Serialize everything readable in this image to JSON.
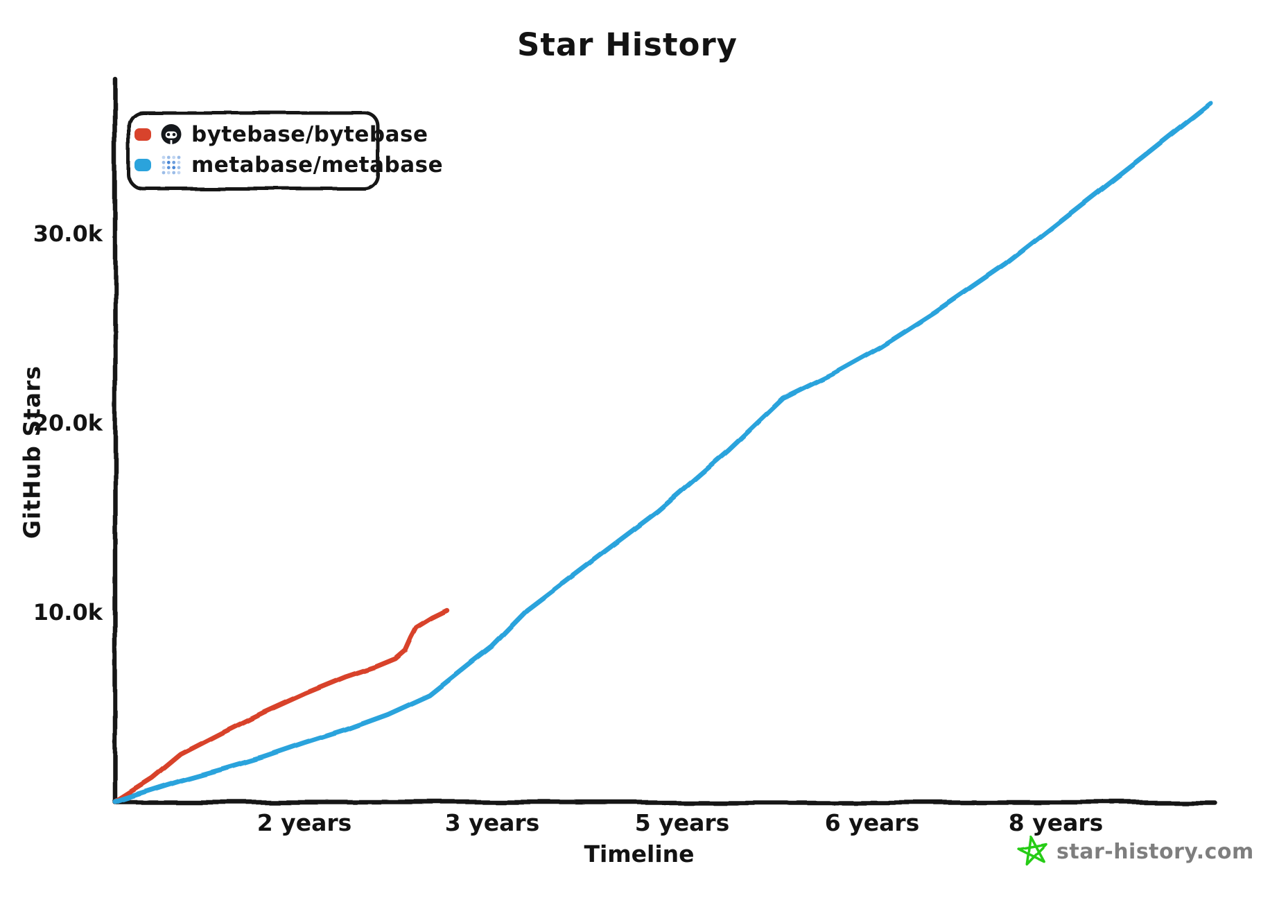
{
  "title": "Star History",
  "watermark": {
    "label": "star-history.com",
    "icon": "doodle-star-icon",
    "icon_color": "#26cc14",
    "text_color": "#7e7e7e"
  },
  "legend": {
    "position": "top-left",
    "items": [
      {
        "label": "bytebase/bytebase",
        "color": "#d8432c",
        "icon": "github-invertocat-avatar"
      },
      {
        "label": "metabase/metabase",
        "color": "#2ba3dc",
        "icon": "metabase-dot-grid-avatar"
      }
    ]
  },
  "chart_data": {
    "type": "line",
    "title": "Star History",
    "xlabel": "Timeline",
    "ylabel": "GitHub Stars",
    "grid": false,
    "legend_position": "top-left",
    "axis_color": "#131313",
    "ylim_k": [
      0,
      38
    ],
    "y_ticks": [
      {
        "label": "10.0k",
        "value_k": 10
      },
      {
        "label": "20.0k",
        "value_k": 20
      },
      {
        "label": "30.0k",
        "value_k": 30
      }
    ],
    "x_ticks": [
      {
        "label": "2 years",
        "t": 0.173
      },
      {
        "label": "3 years",
        "t": 0.344
      },
      {
        "label": "5 years",
        "t": 0.518
      },
      {
        "label": "6 years",
        "t": 0.691
      },
      {
        "label": "8 years",
        "t": 0.859
      }
    ],
    "series": [
      {
        "name": "bytebase/bytebase",
        "color": "#d8432c",
        "final_stars_k": 10.1,
        "points": [
          [
            0,
            0
          ],
          [
            0.034,
            1.25
          ],
          [
            0.06,
            2.5
          ],
          [
            0.097,
            3.6
          ],
          [
            0.135,
            4.7
          ],
          [
            0.173,
            5.7
          ],
          [
            0.211,
            6.6
          ],
          [
            0.237,
            7.1
          ],
          [
            0.256,
            7.55
          ],
          [
            0.265,
            8.0
          ],
          [
            0.27,
            8.65
          ],
          [
            0.275,
            9.2
          ],
          [
            0.289,
            9.7
          ],
          [
            0.303,
            10.1
          ]
        ]
      },
      {
        "name": "metabase/metabase",
        "color": "#2ba3dc",
        "final_stars_k": 36.9,
        "points": [
          [
            0,
            0
          ],
          [
            0.06,
            1.1
          ],
          [
            0.097,
            1.7
          ],
          [
            0.135,
            2.35
          ],
          [
            0.173,
            3.1
          ],
          [
            0.211,
            3.8
          ],
          [
            0.249,
            4.6
          ],
          [
            0.287,
            5.6
          ],
          [
            0.325,
            7.35
          ],
          [
            0.344,
            8.2
          ],
          [
            0.36,
            9.15
          ],
          [
            0.376,
            10.1
          ],
          [
            0.433,
            12.6
          ],
          [
            0.496,
            15.35
          ],
          [
            0.56,
            18.55
          ],
          [
            0.61,
            21.3
          ],
          [
            0.654,
            22.55
          ],
          [
            0.699,
            24.0
          ],
          [
            0.749,
            25.85
          ],
          [
            0.813,
            28.4
          ],
          [
            0.876,
            31.25
          ],
          [
            0.939,
            34.1
          ],
          [
            1,
            36.9
          ]
        ]
      }
    ]
  }
}
